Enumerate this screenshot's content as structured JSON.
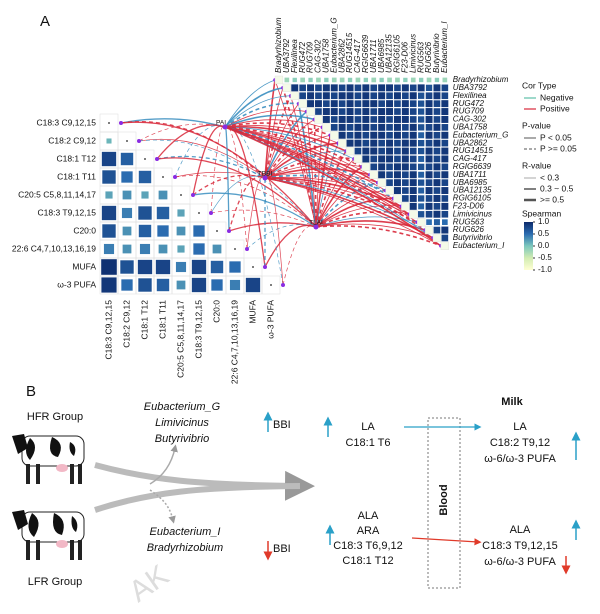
{
  "panel_a": {
    "label": "A",
    "fatty_acids": [
      "C18:3 C9,12,15",
      "C18:2 C9,12",
      "C18:1 T12",
      "C18:1 T11",
      "C20:5 C5,8,11,14,17",
      "C18:3 T9,12,15",
      "C20:0",
      "22:6 C4,7,10,13,16,19",
      "MUFA",
      "ω-3 PUFA"
    ],
    "fa_matrix": [
      [
        0.1
      ],
      [
        0.8,
        0.6
      ],
      [
        0.7,
        0.5,
        0.6
      ],
      [
        0.2,
        0.3,
        0.2,
        0.3
      ],
      [
        0.8,
        0.4,
        0.7,
        0.6,
        0.2
      ],
      [
        0.7,
        0.3,
        0.6,
        0.5,
        0.3,
        0.5
      ],
      [
        0.4,
        0.3,
        0.4,
        0.3,
        0.2,
        0.5,
        0.3
      ],
      [
        0.95,
        0.7,
        0.8,
        0.8,
        0.4,
        0.8,
        0.6,
        0.5
      ],
      [
        0.9,
        0.5,
        0.7,
        0.6,
        0.3,
        0.8,
        0.5,
        0.4,
        0.8
      ]
    ],
    "hubs": [
      "PAI",
      "TBBI",
      "TLAI"
    ],
    "bacteria": [
      "Bradyrhizobium",
      "UBA3792",
      "Flexilinea",
      "RUG472",
      "RUG709",
      "CAG-302",
      "UBA1758",
      "Eubacterium_G",
      "UBA2862",
      "RUG14515",
      "CAG-417",
      "RGIG6639",
      "UBA1711",
      "UBA6985",
      "UBA12135",
      "RGIG6105",
      "F23-D06",
      "Limivicinus",
      "RUG563",
      "RUG626",
      "Butyrivibrio",
      "Eubacterium_I"
    ],
    "bac_matrix": [
      [
        -0.2,
        -0.1,
        -0.2,
        -0.1,
        -0.2,
        -0.1,
        -0.2,
        -0.2,
        -0.1,
        -0.2,
        -0.1,
        -0.2,
        -0.1,
        -0.2,
        -0.2,
        -0.1,
        -0.2,
        -0.1,
        -0.2,
        -0.1,
        -0.2
      ],
      [
        0.9,
        0.8,
        0.9,
        0.8,
        0.9,
        0.9,
        0.8,
        0.9,
        0.8,
        0.9,
        0.8,
        0.9,
        0.9,
        0.8,
        0.9,
        0.8,
        0.9,
        0.7,
        0.9,
        0.8
      ],
      [
        0.8,
        0.9,
        0.8,
        0.9,
        0.8,
        0.9,
        0.9,
        0.8,
        0.9,
        0.8,
        0.9,
        0.8,
        0.9,
        0.8,
        0.9,
        0.7,
        0.8,
        0.9,
        0.8
      ],
      [
        0.9,
        0.9,
        0.8,
        0.9,
        0.8,
        0.9,
        0.8,
        0.9,
        0.9,
        0.8,
        0.9,
        0.8,
        0.9,
        0.8,
        0.7,
        0.9,
        0.8,
        0.9
      ],
      [
        0.8,
        0.9,
        0.9,
        0.8,
        0.9,
        0.8,
        0.9,
        0.8,
        0.9,
        0.9,
        0.8,
        0.9,
        0.8,
        0.7,
        0.9,
        0.8,
        0.9
      ],
      [
        0.9,
        0.8,
        0.9,
        0.9,
        0.8,
        0.9,
        0.8,
        0.9,
        0.8,
        0.9,
        0.9,
        0.8,
        0.7,
        0.9,
        0.8,
        0.9
      ],
      [
        0.8,
        0.9,
        0.8,
        0.9,
        0.9,
        0.8,
        0.9,
        0.8,
        0.9,
        0.8,
        0.9,
        0.7,
        0.8,
        0.9,
        0.8
      ],
      [
        0.9,
        0.8,
        0.9,
        0.8,
        0.9,
        0.9,
        0.8,
        0.9,
        0.8,
        0.9,
        0.6,
        0.9,
        0.8,
        0.9
      ],
      [
        0.9,
        0.9,
        0.8,
        0.9,
        0.8,
        0.9,
        0.8,
        0.9,
        0.9,
        0.7,
        0.8,
        0.9,
        0.8
      ],
      [
        0.8,
        0.9,
        0.9,
        0.8,
        0.9,
        0.8,
        0.9,
        0.8,
        0.7,
        0.9,
        0.8,
        0.9
      ],
      [
        0.9,
        0.8,
        0.9,
        0.9,
        0.8,
        0.9,
        0.8,
        0.6,
        0.9,
        0.8,
        0.9
      ],
      [
        0.8,
        0.9,
        0.8,
        0.9,
        0.9,
        0.8,
        0.7,
        0.8,
        0.9,
        0.8
      ],
      [
        0.9,
        0.8,
        0.9,
        0.8,
        0.9,
        0.6,
        0.9,
        0.8,
        0.9
      ],
      [
        0.8,
        0.9,
        0.8,
        0.9,
        0.7,
        0.8,
        0.9,
        0.8
      ],
      [
        0.9,
        0.8,
        0.9,
        0.6,
        0.9,
        0.8,
        0.9
      ],
      [
        0.8,
        0.9,
        0.7,
        0.8,
        0.9,
        0.8
      ],
      [
        0.9,
        0.6,
        0.9,
        0.8,
        0.9
      ],
      [
        0.7,
        0.8,
        0.9,
        0.8
      ],
      [
        0.5,
        0.6,
        0.5
      ],
      [
        0.8,
        0.9
      ],
      [
        0.8
      ]
    ],
    "legend": {
      "cor_type": {
        "title": "Cor Type",
        "items": [
          "Negative",
          "Positive"
        ]
      },
      "p_value": {
        "title": "P-value",
        "items": [
          "P < 0.05",
          "P >= 0.05"
        ]
      },
      "r_value": {
        "title": "R-value",
        "items": [
          "< 0.3",
          "0.3 ~ 0.5",
          ">= 0.5"
        ]
      },
      "spearman": {
        "title": "Spearman",
        "ticks": [
          {
            "value": 1,
            "label": "1.0"
          },
          0.5,
          {
            "value": 0,
            "label": "0.0"
          },
          -0.5,
          {
            "value": -1,
            "label": "-1.0"
          }
        ]
      }
    }
  },
  "panel_b": {
    "label": "B",
    "groups": [
      "HFR Group",
      "LFR Group"
    ],
    "up_bacteria": [
      "Eubacterium_G",
      "Limivicinus",
      "Butyrivibrio"
    ],
    "down_bacteria": [
      "Eubacterium_I",
      "Bradyrhizobium"
    ],
    "up_index": "BBI",
    "down_index": "BBI",
    "rumen_up": [
      "LA",
      "C18:1 T6"
    ],
    "rumen_down": [
      "ALA",
      "ARA",
      "C18:3 T6,9,12",
      "C18:1 T12"
    ],
    "blood": "Blood",
    "milk": "Milk",
    "milk_up": [
      "LA",
      "C18:2 T9,12",
      "ω-6/ω-3 PUFA"
    ],
    "milk_down": [
      "ALA",
      "C18:3 T9,12,15",
      "ω-6/ω-3 PUFA"
    ],
    "watermark": "AK"
  }
}
